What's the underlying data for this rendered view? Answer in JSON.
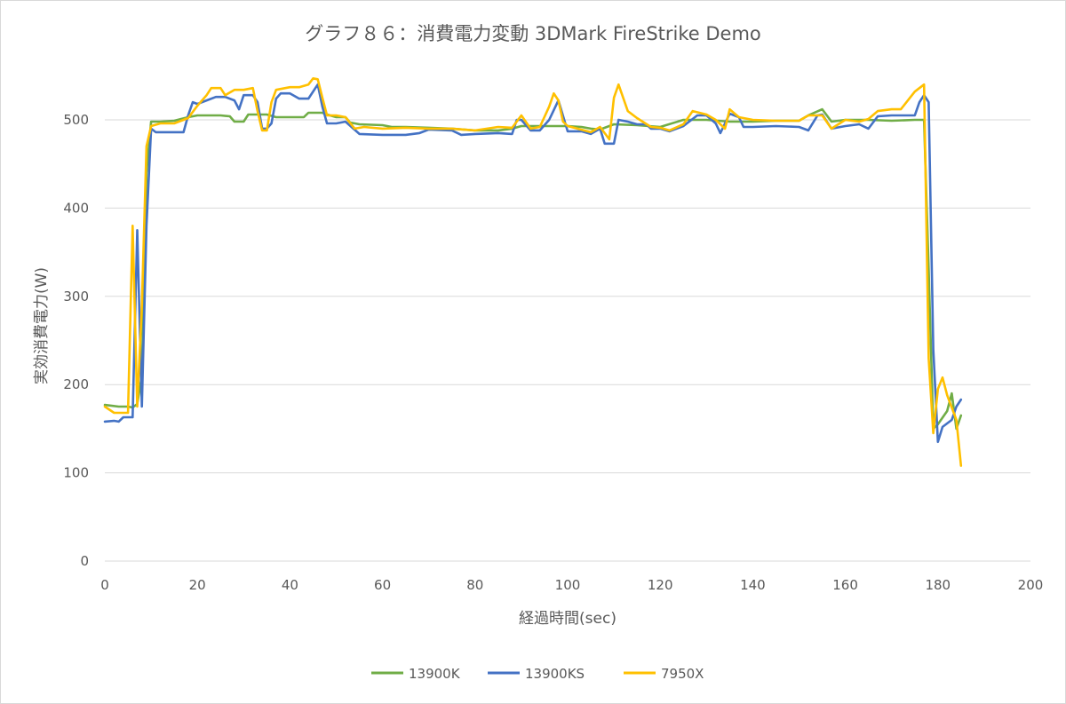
{
  "chart_data": {
    "type": "line",
    "title": "グラフ８６：消費電力変動 3DMark FireStrike Demo",
    "xlabel": "経過時間(sec)",
    "ylabel": "実効消費電力(W)",
    "xlim": [
      0,
      200
    ],
    "ylim": [
      0,
      550
    ],
    "xticks": [
      0,
      20,
      40,
      60,
      80,
      100,
      120,
      140,
      160,
      180,
      200
    ],
    "yticks": [
      0,
      100,
      200,
      300,
      400,
      500
    ],
    "grid": "horizontal",
    "legend_position": "bottom",
    "series": [
      {
        "name": "13900K",
        "color": "#70ad47",
        "points": [
          [
            0,
            177
          ],
          [
            3,
            175
          ],
          [
            5,
            175
          ],
          [
            6,
            174
          ],
          [
            7,
            178
          ],
          [
            8,
            210
          ],
          [
            9,
            440
          ],
          [
            10,
            498
          ],
          [
            12,
            498
          ],
          [
            15,
            499
          ],
          [
            18,
            503
          ],
          [
            20,
            505
          ],
          [
            25,
            505
          ],
          [
            27,
            504
          ],
          [
            28,
            498
          ],
          [
            30,
            498
          ],
          [
            31,
            506
          ],
          [
            35,
            506
          ],
          [
            37,
            503
          ],
          [
            40,
            503
          ],
          [
            43,
            503
          ],
          [
            44,
            508
          ],
          [
            47,
            508
          ],
          [
            48,
            506
          ],
          [
            50,
            503
          ],
          [
            52,
            503
          ],
          [
            53,
            497
          ],
          [
            55,
            495
          ],
          [
            60,
            494
          ],
          [
            62,
            492
          ],
          [
            65,
            492
          ],
          [
            70,
            491
          ],
          [
            75,
            490
          ],
          [
            80,
            488
          ],
          [
            85,
            488
          ],
          [
            88,
            490
          ],
          [
            90,
            493
          ],
          [
            95,
            493
          ],
          [
            100,
            493
          ],
          [
            103,
            492
          ],
          [
            105,
            490
          ],
          [
            107,
            489
          ],
          [
            110,
            495
          ],
          [
            115,
            494
          ],
          [
            120,
            492
          ],
          [
            125,
            500
          ],
          [
            130,
            500
          ],
          [
            135,
            498
          ],
          [
            140,
            498
          ],
          [
            145,
            499
          ],
          [
            150,
            499
          ],
          [
            152,
            505
          ],
          [
            155,
            512
          ],
          [
            157,
            498
          ],
          [
            160,
            500
          ],
          [
            165,
            500
          ],
          [
            170,
            499
          ],
          [
            175,
            500
          ],
          [
            177,
            500
          ],
          [
            178,
            330
          ],
          [
            179,
            150
          ],
          [
            180,
            155
          ],
          [
            182,
            170
          ],
          [
            183,
            190
          ],
          [
            184,
            150
          ],
          [
            185,
            165
          ]
        ]
      },
      {
        "name": "13900KS",
        "color": "#4472c4",
        "points": [
          [
            0,
            158
          ],
          [
            2,
            159
          ],
          [
            3,
            158
          ],
          [
            4,
            163
          ],
          [
            6,
            163
          ],
          [
            7,
            375
          ],
          [
            8,
            175
          ],
          [
            9,
            380
          ],
          [
            10,
            490
          ],
          [
            11,
            486
          ],
          [
            15,
            486
          ],
          [
            17,
            486
          ],
          [
            18,
            505
          ],
          [
            19,
            520
          ],
          [
            20,
            518
          ],
          [
            22,
            522
          ],
          [
            24,
            526
          ],
          [
            26,
            526
          ],
          [
            28,
            522
          ],
          [
            29,
            512
          ],
          [
            30,
            528
          ],
          [
            32,
            528
          ],
          [
            33,
            520
          ],
          [
            34,
            490
          ],
          [
            35,
            490
          ],
          [
            36,
            496
          ],
          [
            37,
            524
          ],
          [
            38,
            530
          ],
          [
            40,
            530
          ],
          [
            42,
            524
          ],
          [
            44,
            524
          ],
          [
            46,
            540
          ],
          [
            47,
            515
          ],
          [
            48,
            496
          ],
          [
            50,
            496
          ],
          [
            52,
            498
          ],
          [
            55,
            484
          ],
          [
            60,
            483
          ],
          [
            65,
            483
          ],
          [
            68,
            485
          ],
          [
            70,
            489
          ],
          [
            75,
            488
          ],
          [
            77,
            483
          ],
          [
            80,
            484
          ],
          [
            85,
            485
          ],
          [
            88,
            484
          ],
          [
            89,
            500
          ],
          [
            90,
            500
          ],
          [
            92,
            488
          ],
          [
            94,
            488
          ],
          [
            96,
            500
          ],
          [
            98,
            522
          ],
          [
            100,
            487
          ],
          [
            103,
            487
          ],
          [
            105,
            484
          ],
          [
            107,
            490
          ],
          [
            108,
            473
          ],
          [
            110,
            473
          ],
          [
            111,
            500
          ],
          [
            113,
            498
          ],
          [
            115,
            495
          ],
          [
            117,
            495
          ],
          [
            118,
            490
          ],
          [
            120,
            490
          ],
          [
            122,
            487
          ],
          [
            125,
            493
          ],
          [
            128,
            505
          ],
          [
            130,
            505
          ],
          [
            132,
            496
          ],
          [
            133,
            485
          ],
          [
            135,
            507
          ],
          [
            137,
            503
          ],
          [
            138,
            492
          ],
          [
            140,
            492
          ],
          [
            145,
            493
          ],
          [
            150,
            492
          ],
          [
            152,
            488
          ],
          [
            154,
            505
          ],
          [
            155,
            506
          ],
          [
            157,
            490
          ],
          [
            160,
            493
          ],
          [
            163,
            495
          ],
          [
            165,
            490
          ],
          [
            167,
            504
          ],
          [
            170,
            505
          ],
          [
            175,
            505
          ],
          [
            176,
            520
          ],
          [
            177,
            528
          ],
          [
            178,
            520
          ],
          [
            179,
            240
          ],
          [
            180,
            135
          ],
          [
            181,
            152
          ],
          [
            183,
            160
          ],
          [
            184,
            175
          ],
          [
            185,
            183
          ]
        ]
      },
      {
        "name": "7950X",
        "color": "#ffc000",
        "points": [
          [
            0,
            175
          ],
          [
            2,
            168
          ],
          [
            5,
            168
          ],
          [
            6,
            380
          ],
          [
            7,
            175
          ],
          [
            8,
            290
          ],
          [
            9,
            470
          ],
          [
            10,
            493
          ],
          [
            12,
            496
          ],
          [
            15,
            496
          ],
          [
            18,
            502
          ],
          [
            20,
            516
          ],
          [
            22,
            528
          ],
          [
            23,
            536
          ],
          [
            25,
            536
          ],
          [
            26,
            528
          ],
          [
            28,
            534
          ],
          [
            30,
            534
          ],
          [
            32,
            536
          ],
          [
            33,
            510
          ],
          [
            34,
            488
          ],
          [
            35,
            488
          ],
          [
            36,
            520
          ],
          [
            37,
            534
          ],
          [
            40,
            537
          ],
          [
            42,
            537
          ],
          [
            44,
            540
          ],
          [
            45,
            547
          ],
          [
            46,
            546
          ],
          [
            47,
            525
          ],
          [
            48,
            505
          ],
          [
            50,
            505
          ],
          [
            52,
            503
          ],
          [
            54,
            490
          ],
          [
            56,
            492
          ],
          [
            60,
            490
          ],
          [
            65,
            491
          ],
          [
            70,
            490
          ],
          [
            75,
            490
          ],
          [
            80,
            488
          ],
          [
            85,
            492
          ],
          [
            88,
            491
          ],
          [
            90,
            505
          ],
          [
            92,
            490
          ],
          [
            94,
            492
          ],
          [
            96,
            515
          ],
          [
            97,
            530
          ],
          [
            98,
            522
          ],
          [
            99,
            498
          ],
          [
            100,
            493
          ],
          [
            105,
            486
          ],
          [
            107,
            492
          ],
          [
            109,
            478
          ],
          [
            110,
            525
          ],
          [
            111,
            540
          ],
          [
            113,
            510
          ],
          [
            115,
            502
          ],
          [
            118,
            492
          ],
          [
            120,
            491
          ],
          [
            122,
            488
          ],
          [
            125,
            495
          ],
          [
            127,
            510
          ],
          [
            130,
            506
          ],
          [
            132,
            500
          ],
          [
            134,
            490
          ],
          [
            135,
            512
          ],
          [
            137,
            503
          ],
          [
            140,
            500
          ],
          [
            145,
            499
          ],
          [
            150,
            499
          ],
          [
            152,
            505
          ],
          [
            155,
            505
          ],
          [
            157,
            490
          ],
          [
            160,
            500
          ],
          [
            163,
            498
          ],
          [
            165,
            501
          ],
          [
            167,
            510
          ],
          [
            170,
            512
          ],
          [
            172,
            512
          ],
          [
            175,
            532
          ],
          [
            177,
            540
          ],
          [
            178,
            230
          ],
          [
            179,
            145
          ],
          [
            180,
            195
          ],
          [
            181,
            208
          ],
          [
            182,
            188
          ],
          [
            184,
            160
          ],
          [
            185,
            108
          ]
        ]
      }
    ]
  }
}
